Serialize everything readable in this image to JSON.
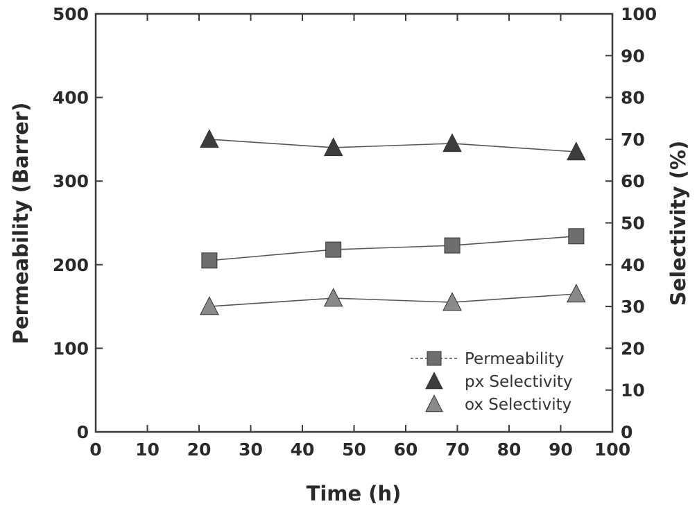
{
  "chart_data": {
    "type": "line",
    "xlabel": "Time (h)",
    "ylabel_left": "Permeability (Barrer)",
    "ylabel_right": "Selectivity (%)",
    "xlim": [
      0,
      100
    ],
    "ylim_left": [
      0,
      500
    ],
    "ylim_right": [
      0,
      100
    ],
    "x_ticks": [
      "0",
      "10",
      "20",
      "30",
      "40",
      "50",
      "60",
      "70",
      "80",
      "90",
      "100"
    ],
    "y_left_ticks": [
      "0",
      "100",
      "200",
      "300",
      "400",
      "500"
    ],
    "y_right_ticks": [
      "0",
      "10",
      "20",
      "30",
      "40",
      "50",
      "60",
      "70",
      "80",
      "90",
      "100"
    ],
    "grid": false,
    "legend_position": "bottom-right",
    "series": [
      {
        "name": "Permeability",
        "axis": "left",
        "marker": "square",
        "color": "#6e6e6e",
        "x": [
          22,
          46,
          69,
          93
        ],
        "y": [
          205,
          218,
          223,
          234
        ]
      },
      {
        "name": "px Selectivity",
        "axis": "right",
        "marker": "triangle",
        "color": "#3c3c3c",
        "x": [
          22,
          46,
          69,
          93
        ],
        "y": [
          70,
          68,
          69,
          67
        ]
      },
      {
        "name": "ox Selectivity",
        "axis": "right",
        "marker": "triangle",
        "color": "#8a8a8a",
        "x": [
          22,
          46,
          69,
          93
        ],
        "y": [
          30,
          32,
          31,
          33
        ]
      }
    ]
  }
}
